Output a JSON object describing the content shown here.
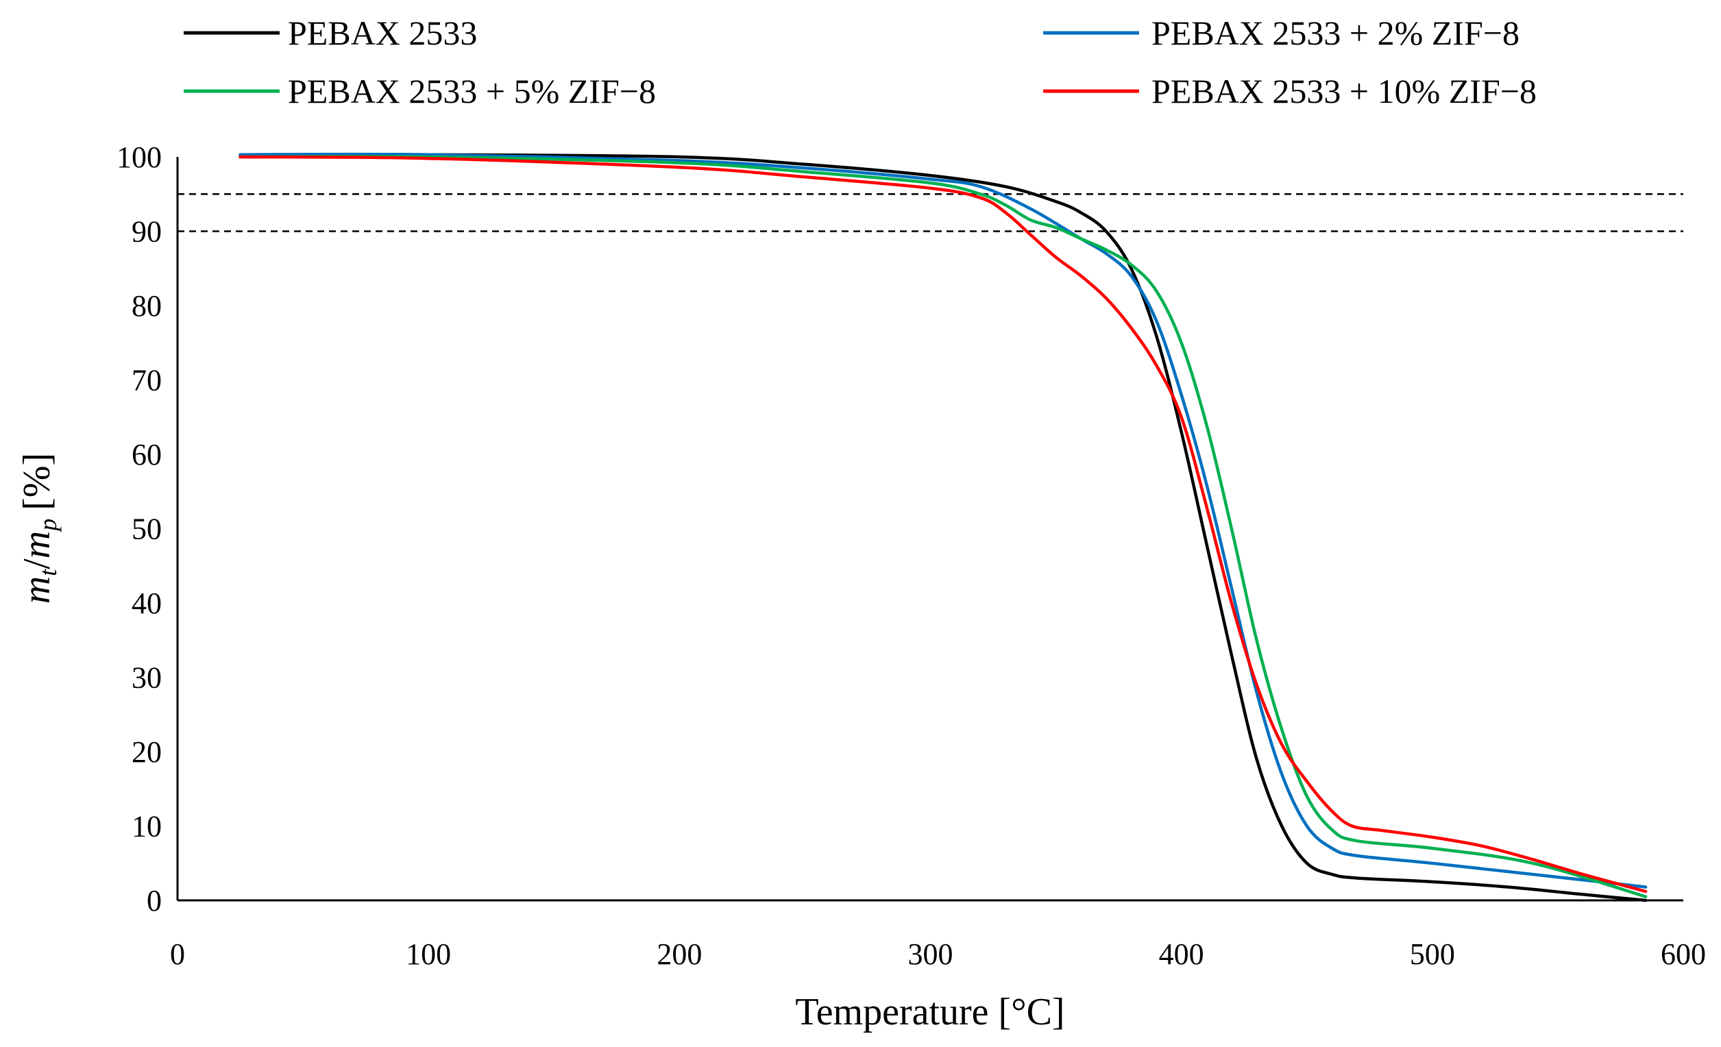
{
  "chart_data": {
    "type": "line",
    "title": "",
    "xlabel": "Temperature [°C]",
    "ylabel_parts": {
      "m": "m",
      "t": "t",
      "slash": "/",
      "p": "p",
      "unit": "[%]"
    },
    "xlim": [
      0,
      600
    ],
    "ylim": [
      0,
      100
    ],
    "xticks": [
      "0",
      "100",
      "200",
      "300",
      "400",
      "500",
      "600"
    ],
    "yticks": [
      "0",
      "10",
      "20",
      "30",
      "40",
      "50",
      "60",
      "70",
      "80",
      "90",
      "100"
    ],
    "grid": false,
    "legend_position": "top",
    "reference_lines": [
      {
        "y": 95,
        "style": "dashed"
      },
      {
        "y": 90,
        "style": "dashed"
      }
    ],
    "series": [
      {
        "name": "PEBAX 2533",
        "color": "#000000",
        "x": [
          25,
          100,
          200,
          250,
          300,
          330,
          350,
          360,
          370,
          380,
          390,
          400,
          410,
          420,
          430,
          440,
          450,
          460,
          470,
          500,
          530,
          560,
          585
        ],
        "y": [
          100.3,
          100.3,
          100,
          99,
          97.5,
          96,
          94,
          92.5,
          90,
          85,
          76,
          63,
          48,
          33,
          19,
          10,
          5,
          3.5,
          3,
          2.5,
          1.8,
          0.8,
          0
        ]
      },
      {
        "name": "PEBAX 2533 + 2% ZIF−8",
        "color": "#0070C0",
        "x": [
          25,
          100,
          200,
          250,
          300,
          320,
          340,
          360,
          370,
          380,
          390,
          400,
          410,
          420,
          430,
          440,
          450,
          460,
          470,
          500,
          540,
          585
        ],
        "y": [
          100.3,
          100.3,
          99.5,
          98.5,
          97,
          96,
          93,
          89,
          87,
          84,
          78,
          68,
          56,
          42,
          28,
          17,
          10,
          7,
          6,
          5,
          3.5,
          1.8
        ]
      },
      {
        "name": "PEBAX 2533 + 5% ZIF−8",
        "color": "#00B050",
        "x": [
          25,
          100,
          200,
          250,
          300,
          320,
          330,
          340,
          350,
          360,
          370,
          380,
          390,
          400,
          410,
          420,
          430,
          440,
          450,
          460,
          470,
          500,
          540,
          585
        ],
        "y": [
          100,
          100,
          99.2,
          98,
          96.5,
          95,
          93.5,
          91.5,
          90.5,
          89,
          87.5,
          85.5,
          82,
          75,
          64,
          50,
          35,
          23,
          14,
          9.5,
          8,
          7,
          5,
          0.5
        ]
      },
      {
        "name": "PEBAX 2533 + 10% ZIF−8",
        "color": "#FF0000",
        "x": [
          25,
          100,
          200,
          250,
          300,
          320,
          330,
          340,
          350,
          360,
          370,
          380,
          390,
          400,
          410,
          420,
          430,
          440,
          450,
          460,
          468,
          480,
          500,
          520,
          540,
          560,
          585
        ],
        "y": [
          100,
          99.8,
          98.6,
          97.3,
          95.8,
          94.5,
          92.5,
          89.5,
          86.5,
          84,
          81,
          77,
          72,
          65,
          53,
          40,
          29,
          21,
          16,
          12,
          10,
          9.4,
          8.5,
          7.3,
          5.5,
          3.5,
          1.2
        ]
      }
    ]
  }
}
